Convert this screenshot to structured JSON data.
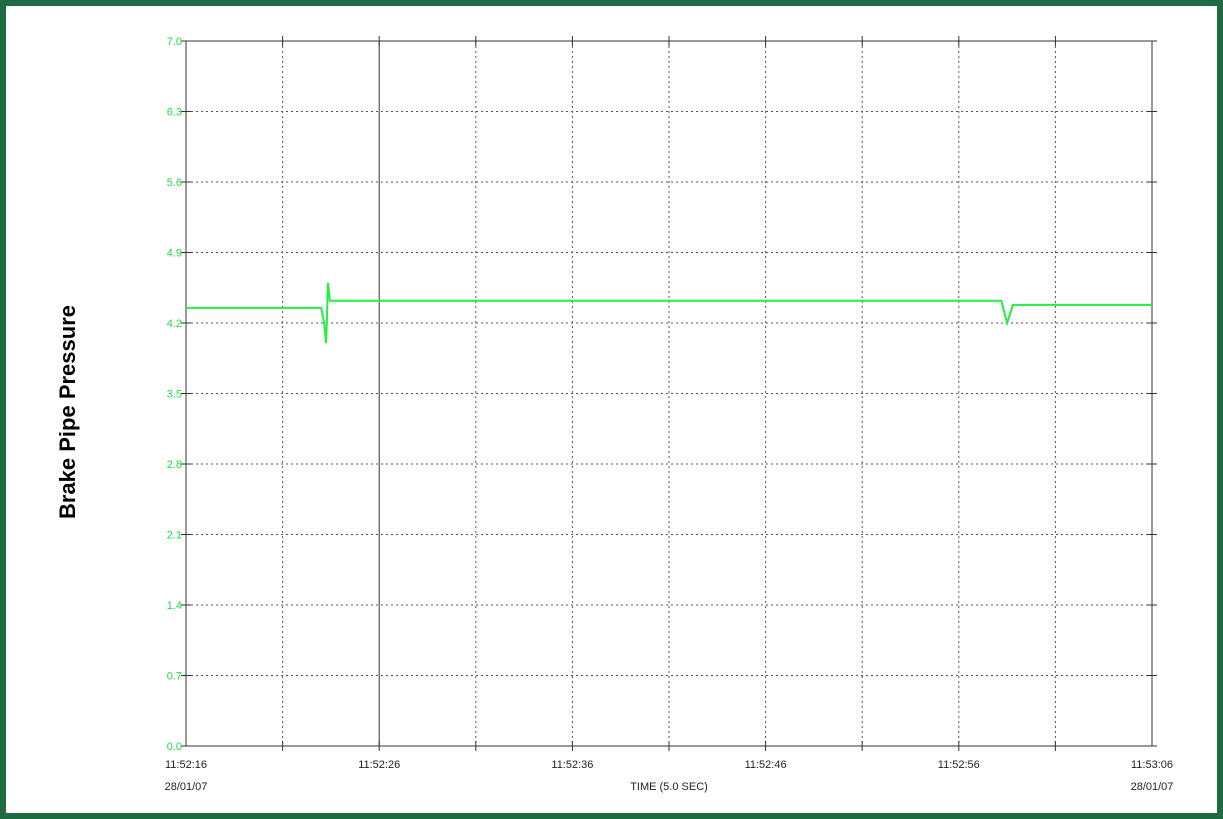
{
  "chart_data": {
    "type": "line",
    "title": "",
    "ylabel": "Brake Pipe Pressure",
    "xlabel": "TIME (5.0 SEC)",
    "ylim": [
      0.0,
      7.0
    ],
    "yticks": [
      "0.0",
      "0.7",
      "1.4",
      "2.1",
      "2.8",
      "3.5",
      "4.2",
      "4.9",
      "5.6",
      "6.3",
      "7.0"
    ],
    "xlim_seconds": [
      0,
      50
    ],
    "xticks": [
      {
        "t": 0,
        "time": "11:52:16",
        "date": "28/01/07"
      },
      {
        "t": 10,
        "time": "11:52:26",
        "date": ""
      },
      {
        "t": 20,
        "time": "11:52:36",
        "date": ""
      },
      {
        "t": 30,
        "time": "11:52:46",
        "date": ""
      },
      {
        "t": 40,
        "time": "11:52:56",
        "date": ""
      },
      {
        "t": 50,
        "time": "11:53:06",
        "date": "28/01/07"
      }
    ],
    "grid": true,
    "line_color": "#22ee44",
    "series": [
      {
        "name": "",
        "points": [
          [
            0,
            4.35
          ],
          [
            7.0,
            4.35
          ],
          [
            7.15,
            4.2
          ],
          [
            7.25,
            4.0
          ],
          [
            7.35,
            4.6
          ],
          [
            7.45,
            4.42
          ],
          [
            10,
            4.42
          ],
          [
            20,
            4.42
          ],
          [
            30,
            4.42
          ],
          [
            40,
            4.42
          ],
          [
            42.2,
            4.42
          ],
          [
            42.5,
            4.2
          ],
          [
            42.8,
            4.38
          ],
          [
            45,
            4.38
          ],
          [
            50,
            4.38
          ]
        ]
      }
    ]
  }
}
